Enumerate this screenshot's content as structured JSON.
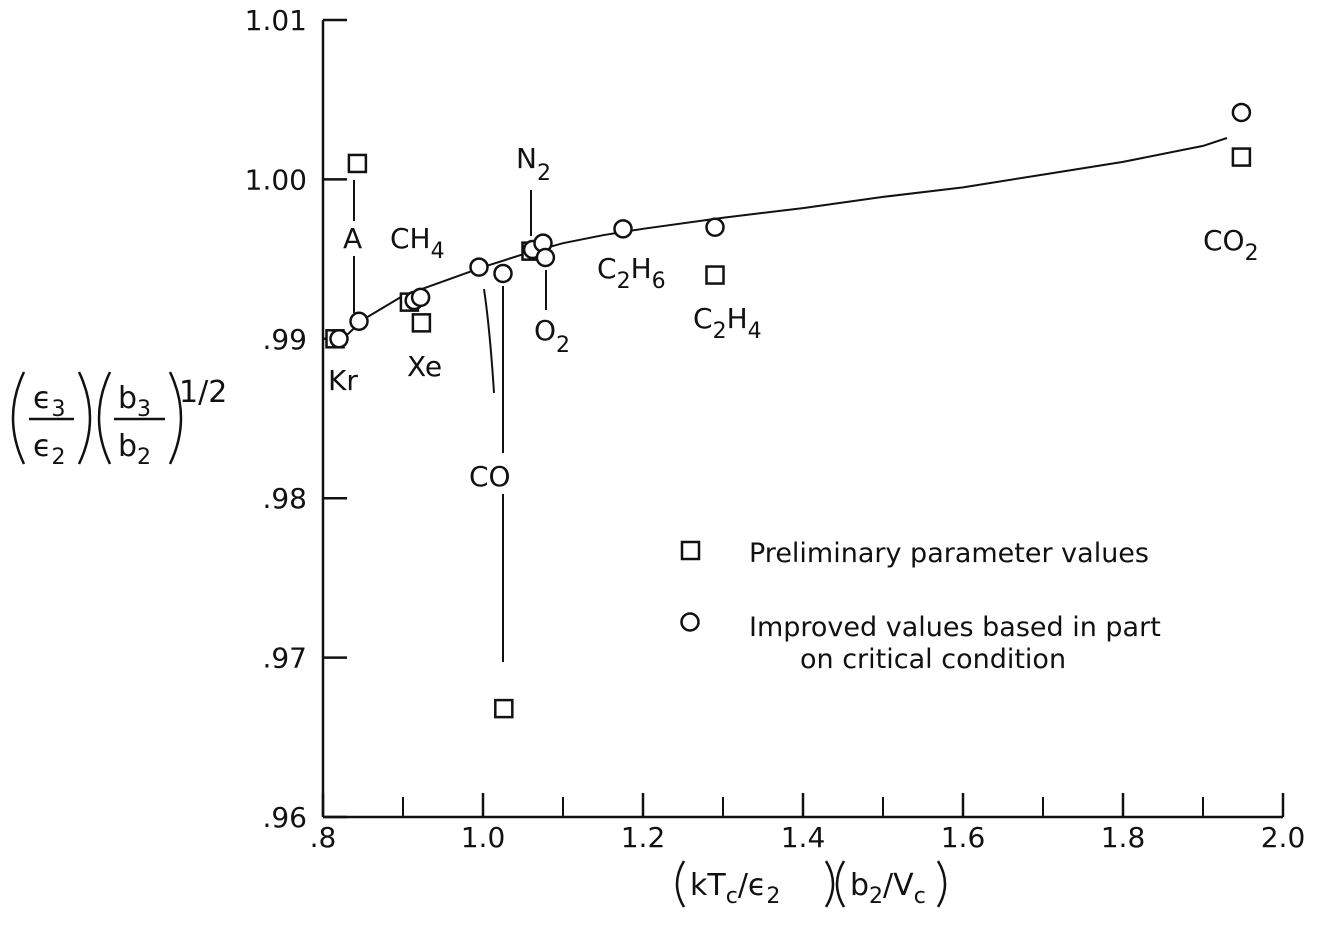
{
  "chart_data": {
    "type": "scatter",
    "xlabel": "(kTc/ϵ2)(b2/Vc)",
    "ylabel": "(ϵ3/ϵ2)(b3/b2)^1/2",
    "xlim": [
      0.8,
      2.0
    ],
    "ylim": [
      0.96,
      1.01
    ],
    "x_ticks": [
      ".8",
      "1.0",
      "1.2",
      "1.4",
      "1.6",
      "1.8",
      "2.0"
    ],
    "y_ticks": [
      ".96",
      ".97",
      ".98",
      ".99",
      "1.00",
      "1.01"
    ],
    "x_tick_values": [
      0.8,
      1.0,
      1.2,
      1.4,
      1.6,
      1.8,
      2.0
    ],
    "y_tick_values": [
      0.96,
      0.97,
      0.98,
      0.99,
      1.0,
      1.01
    ],
    "x_minor_ticks": [
      0.9,
      1.1,
      1.3,
      1.5,
      1.7,
      1.9
    ],
    "grid": false,
    "legend_position": "center-right",
    "series": [
      {
        "name": "Preliminary parameter values",
        "marker": "square",
        "points": [
          {
            "label": "Kr",
            "x": 0.815,
            "y": 0.99
          },
          {
            "label": "A",
            "x": 0.843,
            "y": 1.001
          },
          {
            "label": "CH4",
            "x": 0.908,
            "y": 0.9923
          },
          {
            "label": "Xe",
            "x": 0.923,
            "y": 0.991
          },
          {
            "label": "CO",
            "x": 1.026,
            "y": 0.9668
          },
          {
            "label": "N2",
            "x": 1.06,
            "y": 0.9955
          },
          {
            "label": "C2H4",
            "x": 1.29,
            "y": 0.994
          },
          {
            "label": "CO2",
            "x": 1.948,
            "y": 1.0014
          }
        ]
      },
      {
        "name": "Improved values based in part on critical condition",
        "marker": "circle",
        "points": [
          {
            "label": "Kr",
            "x": 0.82,
            "y": 0.99
          },
          {
            "label": "A",
            "x": 0.845,
            "y": 0.9911
          },
          {
            "label": "CH4",
            "x": 0.914,
            "y": 0.9924
          },
          {
            "label": "Xe",
            "x": 0.922,
            "y": 0.9926
          },
          {
            "label": "",
            "x": 0.995,
            "y": 0.9945
          },
          {
            "label": "CO",
            "x": 1.025,
            "y": 0.9941
          },
          {
            "label": "N2",
            "x": 1.062,
            "y": 0.9956
          },
          {
            "label": "",
            "x": 1.075,
            "y": 0.996
          },
          {
            "label": "O2",
            "x": 1.078,
            "y": 0.9951
          },
          {
            "label": "C2H6",
            "x": 1.175,
            "y": 0.9969
          },
          {
            "label": "C2H4",
            "x": 1.29,
            "y": 0.997
          },
          {
            "label": "CO2",
            "x": 1.948,
            "y": 1.0042
          }
        ]
      }
    ],
    "fit_curve": [
      [
        0.825,
        0.99
      ],
      [
        0.85,
        0.9912
      ],
      [
        0.9,
        0.9927
      ],
      [
        0.95,
        0.9936
      ],
      [
        1.0,
        0.9945
      ],
      [
        1.05,
        0.9953
      ],
      [
        1.1,
        0.996
      ],
      [
        1.15,
        0.9965
      ],
      [
        1.2,
        0.9969
      ],
      [
        1.3,
        0.9976
      ],
      [
        1.4,
        0.9982
      ],
      [
        1.5,
        0.9989
      ],
      [
        1.6,
        0.9995
      ],
      [
        1.7,
        1.0003
      ],
      [
        1.8,
        1.0011
      ],
      [
        1.9,
        1.0021
      ],
      [
        1.93,
        1.0026
      ]
    ]
  },
  "labels": {
    "Kr": "Kr",
    "A": "A",
    "CH4_main": "CH",
    "CH4_sub": "4",
    "Xe": "Xe",
    "CO": "CO",
    "N2_main": "N",
    "N2_sub": "2",
    "O2_main": "O",
    "O2_sub": "2",
    "C2H6_a": "C",
    "C2H6_b": "2",
    "C2H6_c": "H",
    "C2H6_d": "6",
    "C2H4_a": "C",
    "C2H4_b": "2",
    "C2H4_c": "H",
    "C2H4_d": "4",
    "CO2_main": "CO",
    "CO2_sub": "2"
  },
  "ylabel_parts": {
    "eps": "ϵ",
    "three": "3",
    "two": "2",
    "b": "b",
    "half": "1/2"
  },
  "xlabel_parts": {
    "k": "kT",
    "c": "c",
    "slash": "/",
    "eps": "ϵ",
    "two": "2",
    "b": "b",
    "V": "V"
  },
  "legend": {
    "square_text": "Preliminary parameter values",
    "circle_text_1": "Improved values based in part",
    "circle_text_2": "on critical condition"
  }
}
